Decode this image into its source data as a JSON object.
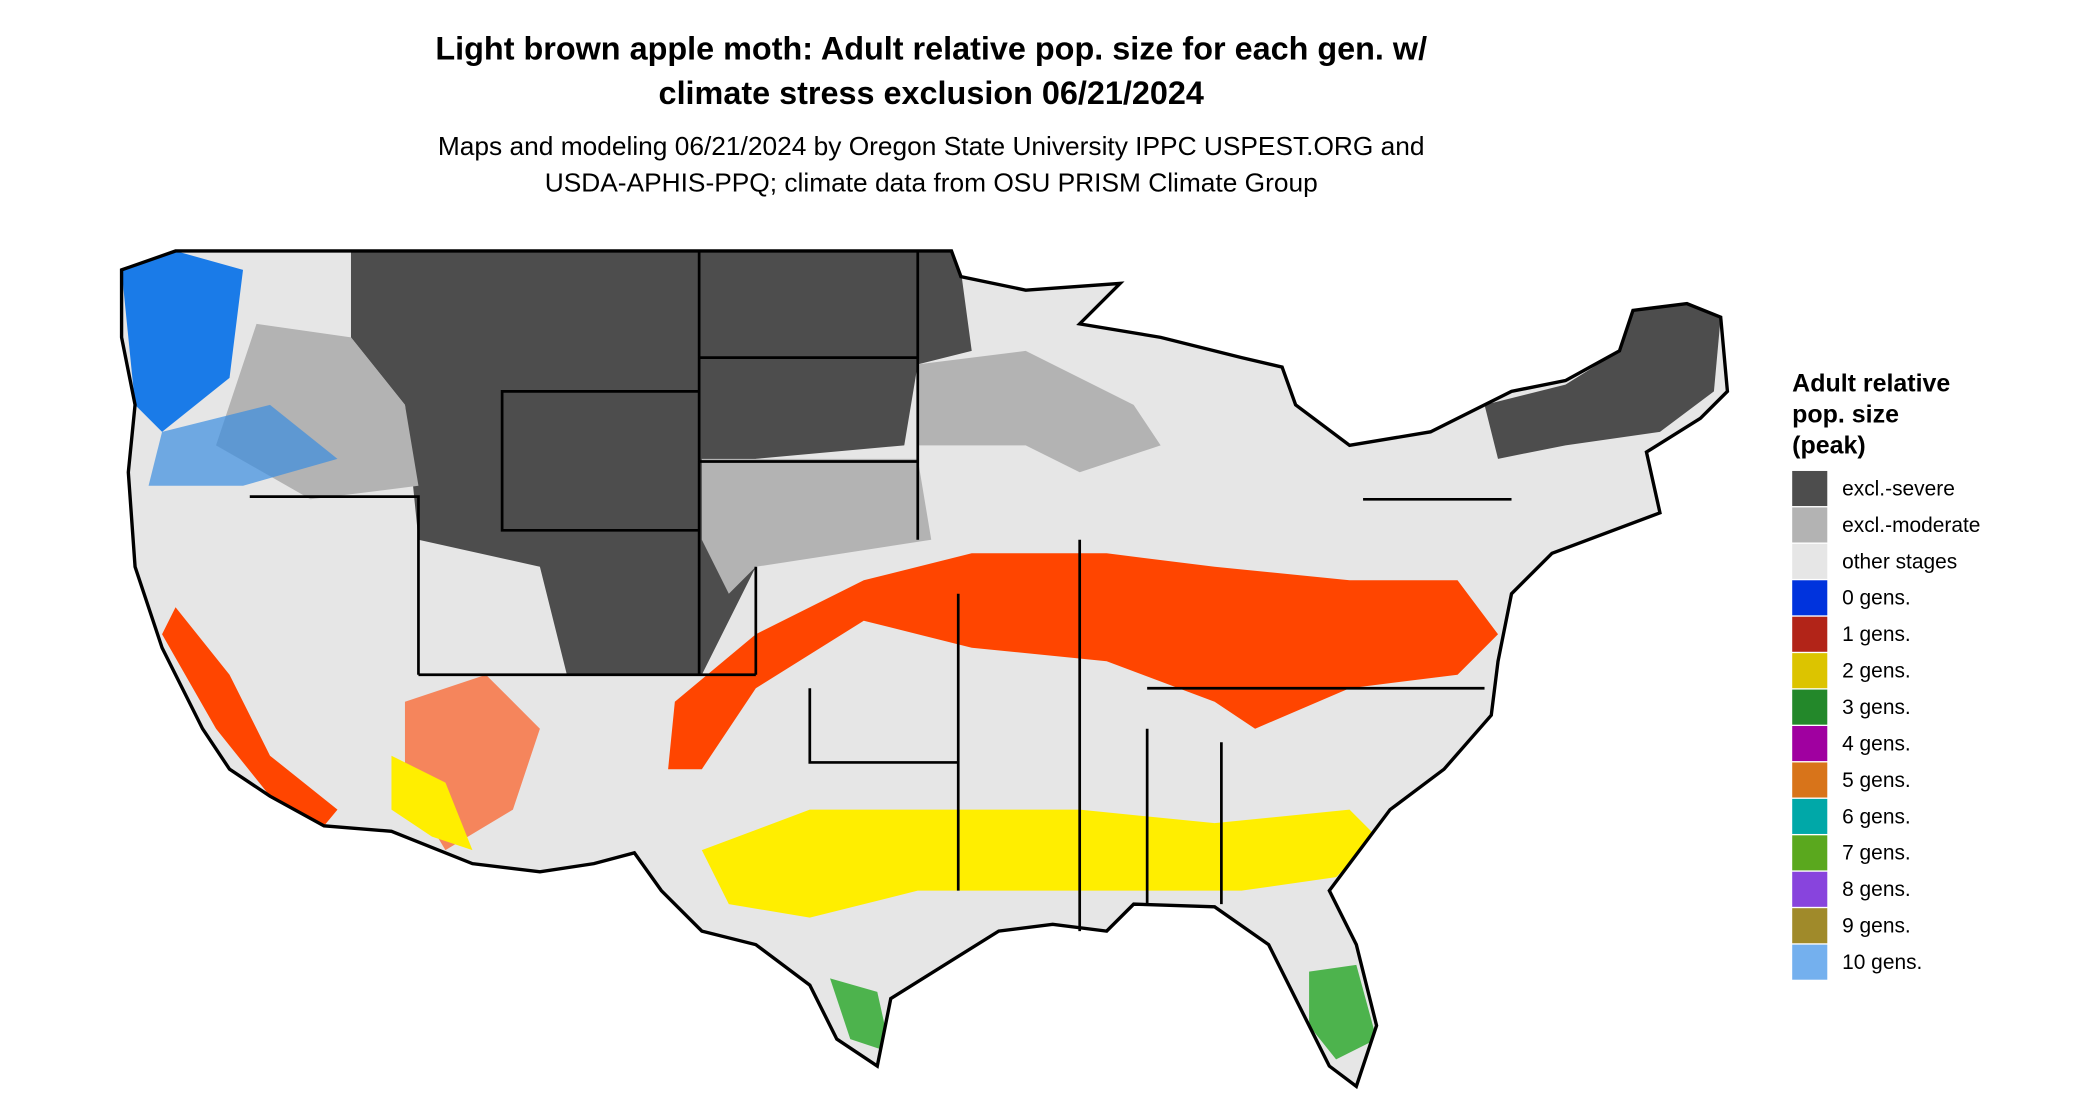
{
  "title": [
    "Light brown apple moth: Adult relative pop. size for each gen. w/",
    "climate stress exclusion 06/21/2024"
  ],
  "subtitle": [
    "Maps and modeling 06/21/2024 by Oregon State University IPPC USPEST.ORG and",
    "USDA-APHIS-PPQ; climate data from OSU PRISM Climate Group"
  ],
  "legend": {
    "title": [
      "Adult relative",
      "pop. size",
      "(peak)"
    ],
    "items": [
      {
        "label": "excl.-severe",
        "color": "#4d4d4d"
      },
      {
        "label": "excl.-moderate",
        "color": "#b3b3b3"
      },
      {
        "label": "other stages",
        "color": "#e6e6e6"
      },
      {
        "label": "0 gens.",
        "color": "#0033dd"
      },
      {
        "label": "1 gens.",
        "color": "#b22418"
      },
      {
        "label": "2 gens.",
        "color": "#dcc400"
      },
      {
        "label": "3 gens.",
        "color": "#23882a"
      },
      {
        "label": "4 gens.",
        "color": "#a000a0"
      },
      {
        "label": "5 gens.",
        "color": "#d8741a"
      },
      {
        "label": "6 gens.",
        "color": "#00a8a8"
      },
      {
        "label": "7 gens.",
        "color": "#5aa81e"
      },
      {
        "label": "8 gens.",
        "color": "#8844dd"
      },
      {
        "label": "9 gens.",
        "color": "#a08a2a"
      },
      {
        "label": "10 gens.",
        "color": "#74b0ee"
      }
    ]
  }
}
